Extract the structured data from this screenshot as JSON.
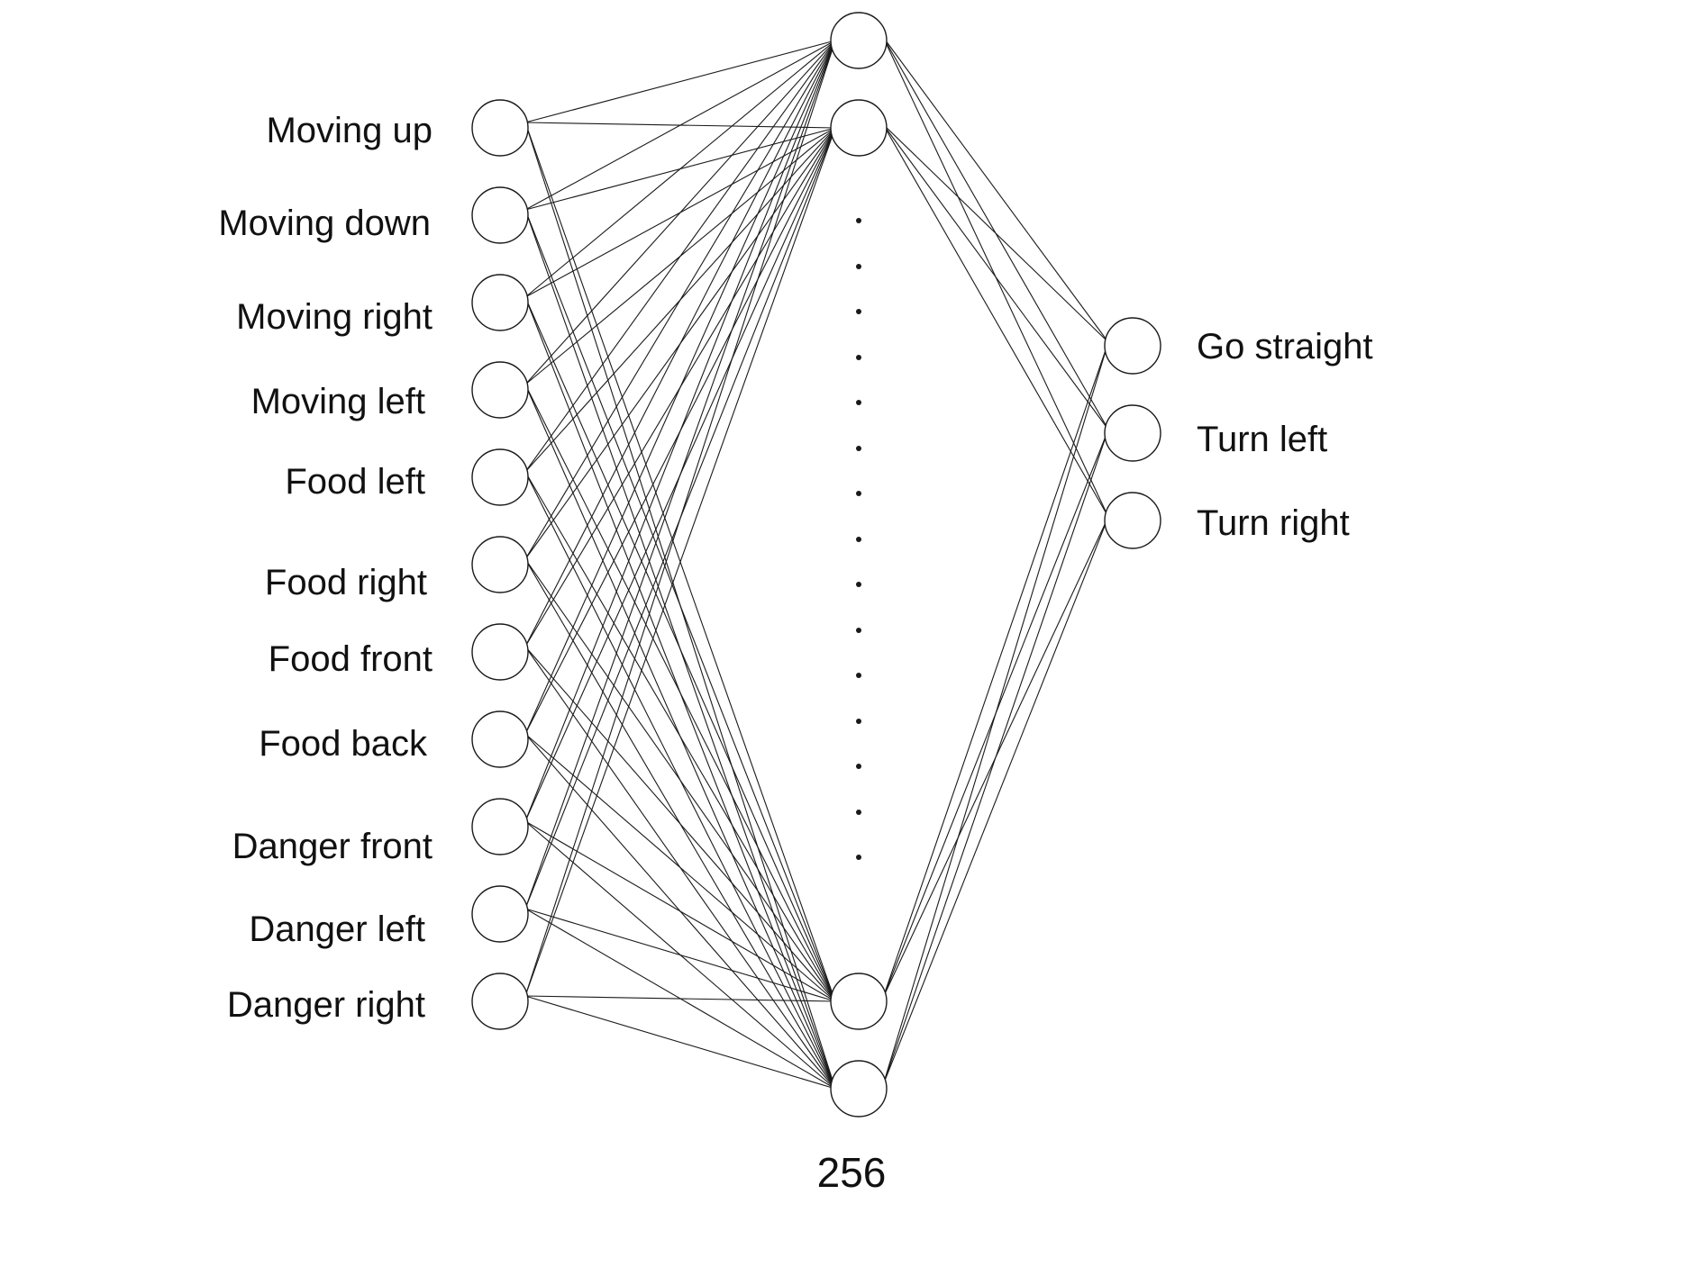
{
  "diagram": {
    "input_layer": {
      "labels": [
        "Moving up",
        "Moving down",
        "Moving right",
        "Moving left",
        "Food left",
        "Food right",
        "Food front",
        "Food back",
        "Danger front",
        "Danger left",
        "Danger right"
      ]
    },
    "hidden_layer": {
      "count_label": "256"
    },
    "output_layer": {
      "labels": [
        "Go straight",
        "Turn left",
        "Turn right"
      ]
    },
    "colors": {
      "line": "#1a1a1a",
      "node_stroke": "#1a1a1a",
      "node_fill": "#ffffff",
      "text": "#111111"
    }
  }
}
